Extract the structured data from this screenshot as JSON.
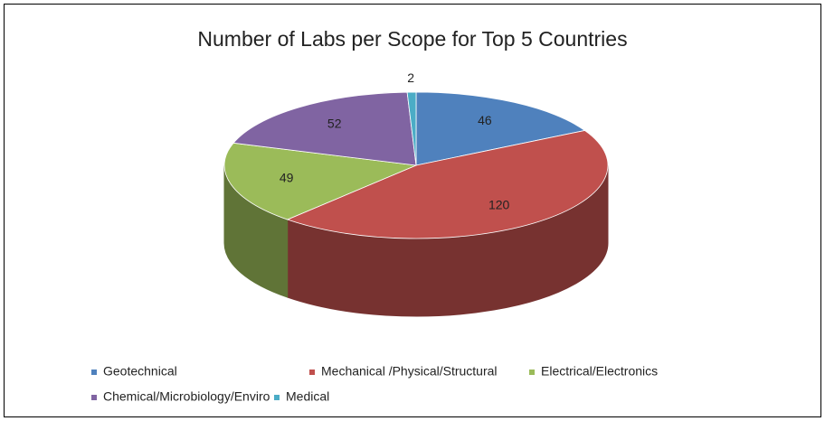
{
  "chart_data": {
    "type": "pie3d",
    "title": "Number of Labs per Scope for Top 5 Countries",
    "categories": [
      "Geotechnical",
      "Mechanical /Physical/Structural",
      "Electrical/Electronics",
      "Chemical/Microbiology/Enviro",
      "Medical"
    ],
    "values": [
      46,
      120,
      49,
      52,
      2
    ],
    "colors": [
      "#4f81bd",
      "#c0504d",
      "#9bbb59",
      "#8064a2",
      "#4bacc6"
    ],
    "legend": "bottom"
  }
}
